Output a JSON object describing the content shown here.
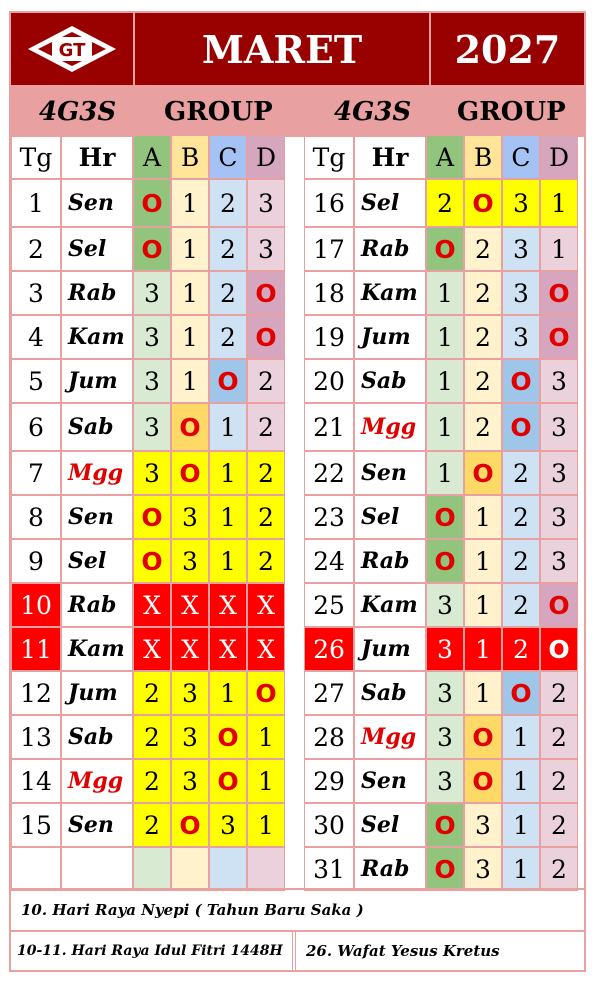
{
  "header": {
    "month": "MARET",
    "year": "2027",
    "logo_text": "GT"
  },
  "subheader": {
    "left_code": "4G3S",
    "left_group": "GROUP",
    "right_code": "4G3S",
    "right_group": "GROUP"
  },
  "columns": {
    "tg": "Tg",
    "hr": "Hr",
    "a": "A",
    "b": "B",
    "c": "C",
    "d": "D"
  },
  "left_rows": [
    {
      "tg": "1",
      "hr": "Sen",
      "a": "O",
      "b": "1",
      "c": "2",
      "d": "3"
    },
    {
      "tg": "2",
      "hr": "Sel",
      "a": "O",
      "b": "1",
      "c": "2",
      "d": "3"
    },
    {
      "tg": "3",
      "hr": "Rab",
      "a": "3",
      "b": "1",
      "c": "2",
      "d": "O"
    },
    {
      "tg": "4",
      "hr": "Kam",
      "a": "3",
      "b": "1",
      "c": "2",
      "d": "O"
    },
    {
      "tg": "5",
      "hr": "Jum",
      "a": "3",
      "b": "1",
      "c": "O",
      "d": "2"
    },
    {
      "tg": "6",
      "hr": "Sab",
      "a": "3",
      "b": "O",
      "c": "1",
      "d": "2"
    },
    {
      "tg": "7",
      "hr": "Mgg",
      "a": "3",
      "b": "O",
      "c": "1",
      "d": "2"
    },
    {
      "tg": "8",
      "hr": "Sen",
      "a": "O",
      "b": "3",
      "c": "1",
      "d": "2"
    },
    {
      "tg": "9",
      "hr": "Sel",
      "a": "O",
      "b": "3",
      "c": "1",
      "d": "2"
    },
    {
      "tg": "10",
      "hr": "Rab",
      "a": "X",
      "b": "X",
      "c": "X",
      "d": "X"
    },
    {
      "tg": "11",
      "hr": "Kam",
      "a": "X",
      "b": "X",
      "c": "X",
      "d": "X"
    },
    {
      "tg": "12",
      "hr": "Jum",
      "a": "2",
      "b": "3",
      "c": "1",
      "d": "O"
    },
    {
      "tg": "13",
      "hr": "Sab",
      "a": "2",
      "b": "3",
      "c": "O",
      "d": "1"
    },
    {
      "tg": "14",
      "hr": "Mgg",
      "a": "2",
      "b": "3",
      "c": "O",
      "d": "1"
    },
    {
      "tg": "15",
      "hr": "Sen",
      "a": "2",
      "b": "O",
      "c": "3",
      "d": "1"
    },
    {
      "tg": "",
      "hr": "",
      "a": "",
      "b": "",
      "c": "",
      "d": ""
    }
  ],
  "right_rows": [
    {
      "tg": "16",
      "hr": "Sel",
      "a": "2",
      "b": "O",
      "c": "3",
      "d": "1"
    },
    {
      "tg": "17",
      "hr": "Rab",
      "a": "O",
      "b": "2",
      "c": "3",
      "d": "1"
    },
    {
      "tg": "18",
      "hr": "Kam",
      "a": "1",
      "b": "2",
      "c": "3",
      "d": "O"
    },
    {
      "tg": "19",
      "hr": "Jum",
      "a": "1",
      "b": "2",
      "c": "3",
      "d": "O"
    },
    {
      "tg": "20",
      "hr": "Sab",
      "a": "1",
      "b": "2",
      "c": "O",
      "d": "3"
    },
    {
      "tg": "21",
      "hr": "Mgg",
      "a": "1",
      "b": "2",
      "c": "O",
      "d": "3"
    },
    {
      "tg": "22",
      "hr": "Sen",
      "a": "1",
      "b": "O",
      "c": "2",
      "d": "3"
    },
    {
      "tg": "23",
      "hr": "Sel",
      "a": "O",
      "b": "1",
      "c": "2",
      "d": "3"
    },
    {
      "tg": "24",
      "hr": "Rab",
      "a": "O",
      "b": "1",
      "c": "2",
      "d": "3"
    },
    {
      "tg": "25",
      "hr": "Kam",
      "a": "3",
      "b": "1",
      "c": "2",
      "d": "O"
    },
    {
      "tg": "26",
      "hr": "Jum",
      "a": "3",
      "b": "1",
      "c": "2",
      "d": "O"
    },
    {
      "tg": "27",
      "hr": "Sab",
      "a": "3",
      "b": "1",
      "c": "O",
      "d": "2"
    },
    {
      "tg": "28",
      "hr": "Mgg",
      "a": "3",
      "b": "O",
      "c": "1",
      "d": "2"
    },
    {
      "tg": "29",
      "hr": "Sen",
      "a": "3",
      "b": "O",
      "c": "1",
      "d": "2"
    },
    {
      "tg": "30",
      "hr": "Sel",
      "a": "O",
      "b": "3",
      "c": "1",
      "d": "2"
    },
    {
      "tg": "31",
      "hr": "Rab",
      "a": "O",
      "b": "3",
      "c": "1",
      "d": "2"
    }
  ],
  "notes": {
    "line1": "10. Hari Raya Nyepi ( Tahun Baru Saka )",
    "line2_left": "10-11. Hari Raya Idul Fitri 1448H",
    "line2_right": "26. Wafat Yesus Kretus"
  },
  "colors": {
    "header_bg": "#990000",
    "subheader_bg": "#e9a0a0",
    "holiday_red": "#ff0000",
    "sunday_yellow": "#ffff00",
    "off_text": "#e00000"
  }
}
